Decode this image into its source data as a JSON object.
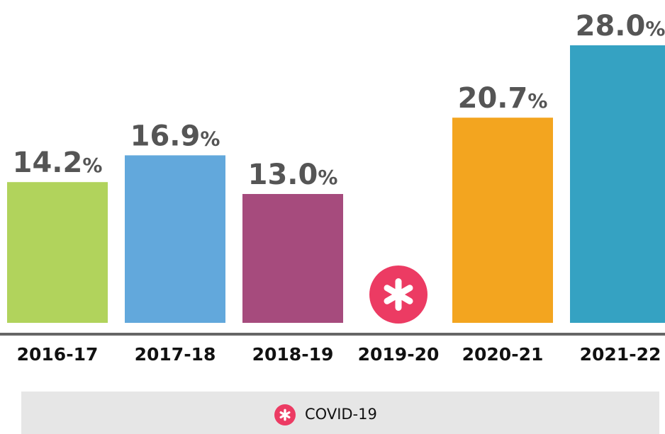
{
  "chart_data": {
    "type": "bar",
    "categories": [
      "2016-17",
      "2017-18",
      "2018-19",
      "2019-20",
      "2020-21",
      "2021-22"
    ],
    "values": [
      14.2,
      16.9,
      13.0,
      null,
      20.7,
      28.0
    ],
    "value_labels": [
      "14.2%",
      "16.9%",
      "13.0%",
      null,
      "20.7%",
      "28.0%"
    ],
    "colors": [
      "#b1d35c",
      "#62a8dc",
      "#a64b7d",
      "#ec3b63",
      "#f3a51f",
      "#35a2c2"
    ],
    "legend": [
      "COVID-19"
    ]
  }
}
